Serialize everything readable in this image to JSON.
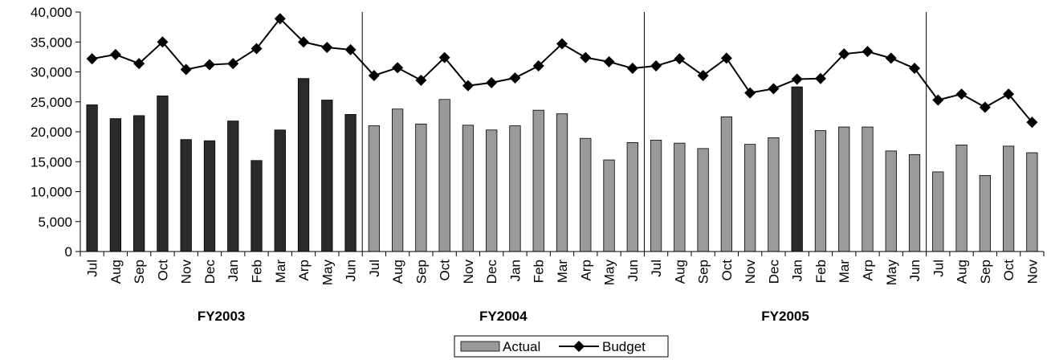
{
  "chart_data": {
    "type": "bar-line",
    "categories": [
      "Jul",
      "Aug",
      "Sep",
      "Oct",
      "Nov",
      "Dec",
      "Jan",
      "Feb",
      "Mar",
      "Arp",
      "May",
      "Jun",
      "Jul",
      "Aug",
      "Sep",
      "Oct",
      "Nov",
      "Dec",
      "Jan",
      "Feb",
      "Mar",
      "Arp",
      "May",
      "Jun",
      "Jul",
      "Aug",
      "Sep",
      "Oct",
      "Nov",
      "Dec",
      "Jan",
      "Feb",
      "Mar",
      "Arp",
      "May",
      "Jun",
      "Jul",
      "Aug",
      "Sep",
      "Oct",
      "Nov"
    ],
    "group_labels": [
      "FY2003",
      "FY2004",
      "FY2005",
      null
    ],
    "series": [
      {
        "name": "Actual",
        "type": "bar",
        "color": "#9a9a9a",
        "colors": [
          "#2a2a2a",
          "#2a2a2a",
          "#2a2a2a",
          "#2a2a2a",
          "#2a2a2a",
          "#2a2a2a",
          "#2a2a2a",
          "#2a2a2a",
          "#2a2a2a",
          "#2a2a2a",
          "#2a2a2a",
          "#2a2a2a",
          "#9a9a9a",
          "#9a9a9a",
          "#9a9a9a",
          "#9a9a9a",
          "#9a9a9a",
          "#9a9a9a",
          "#9a9a9a",
          "#9a9a9a",
          "#9a9a9a",
          "#9a9a9a",
          "#9a9a9a",
          "#9a9a9a",
          "#9a9a9a",
          "#9a9a9a",
          "#9a9a9a",
          "#9a9a9a",
          "#9a9a9a",
          "#9a9a9a",
          "#2a2a2a",
          "#9a9a9a",
          "#9a9a9a",
          "#9a9a9a",
          "#9a9a9a",
          "#9a9a9a",
          "#9a9a9a",
          "#9a9a9a",
          "#9a9a9a",
          "#9a9a9a",
          "#9a9a9a"
        ],
        "values": [
          24500,
          22200,
          22700,
          26000,
          18700,
          18500,
          21800,
          15200,
          20300,
          28900,
          25300,
          22900,
          21000,
          23800,
          21300,
          25400,
          21100,
          20300,
          21000,
          23600,
          23000,
          18900,
          15300,
          18200,
          18600,
          18100,
          17200,
          22500,
          17900,
          19000,
          27500,
          20200,
          20800,
          20800,
          16800,
          16200,
          13300,
          17800,
          12700,
          17600,
          16500
        ]
      },
      {
        "name": "Budget",
        "type": "line",
        "color": "#000000",
        "values": [
          32200,
          32900,
          31400,
          35000,
          30400,
          31200,
          31400,
          33900,
          38900,
          35000,
          34100,
          33700,
          29400,
          30700,
          28600,
          32400,
          27700,
          28200,
          29000,
          31000,
          34700,
          32400,
          31700,
          30600,
          31000,
          32200,
          29400,
          32300,
          26500,
          27200,
          28800,
          28900,
          33000,
          33400,
          32300,
          30600,
          25300,
          26300,
          24100,
          26300,
          21600
        ]
      }
    ],
    "ylim": [
      0,
      40000
    ],
    "yticks": [
      0,
      {
        "value": 5000,
        "label": "5,000"
      },
      {
        "value": 10000,
        "label": "10,000"
      },
      {
        "value": 15000,
        "label": "15,000"
      },
      {
        "value": 20000,
        "label": "20,000"
      },
      {
        "value": 25000,
        "label": "25,000"
      },
      {
        "value": 30000,
        "label": "30,000"
      },
      {
        "value": 35000,
        "label": "35,000"
      },
      {
        "value": 40000,
        "label": "40,000"
      }
    ],
    "legend": "bottom"
  }
}
